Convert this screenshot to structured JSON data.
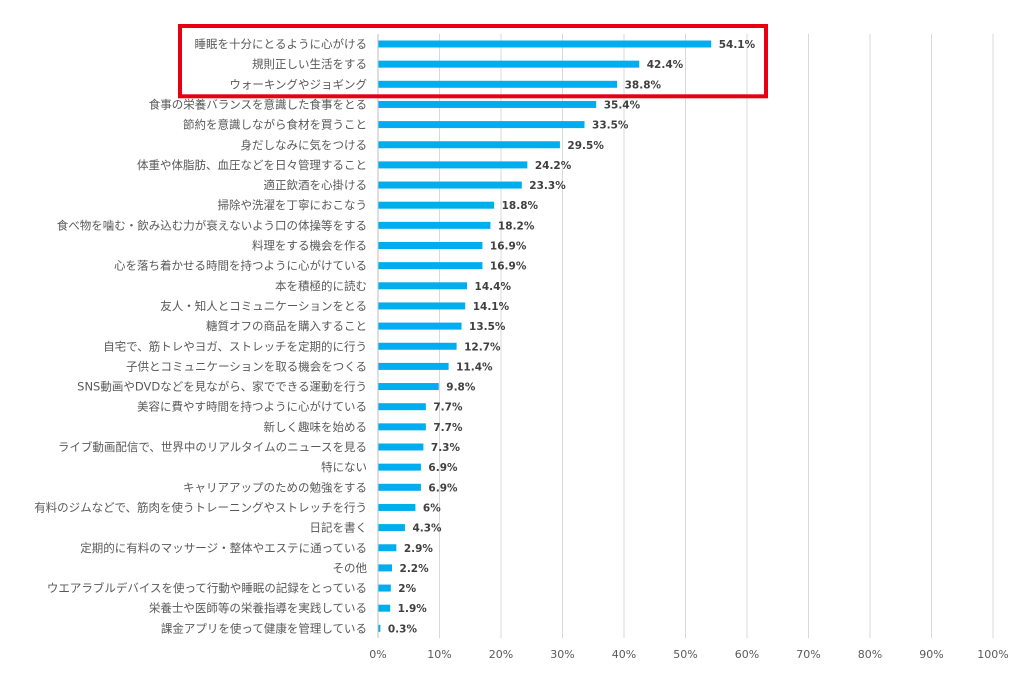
{
  "chart_data": {
    "type": "bar",
    "orientation": "horizontal",
    "title": "",
    "xlabel": "",
    "ylabel": "",
    "xlim": [
      0,
      100
    ],
    "x_ticks": [
      "0%",
      "10%",
      "20%",
      "30%",
      "40%",
      "50%",
      "60%",
      "70%",
      "80%",
      "90%",
      "100%"
    ],
    "grid": true,
    "bar_color": "#00aeef",
    "highlight_color": "#e60012",
    "highlight_categories": [
      "睡眠を十分にとるように心がける",
      "規則正しい生活をする",
      "ウォーキングやジョギング"
    ],
    "categories": [
      "睡眠を十分にとるように心がける",
      "規則正しい生活をする",
      "ウォーキングやジョギング",
      "食事の栄養バランスを意識した食事をとる",
      "節約を意識しながら食材を買うこと",
      "身だしなみに気をつける",
      "体重や体脂肪、血圧などを日々管理すること",
      "適正飲酒を心掛ける",
      "掃除や洗濯を丁寧におこなう",
      "食べ物を噛む・飲み込む力が衰えないよう口の体操等をする",
      "料理をする機会を作る",
      "心を落ち着かせる時間を持つように心がけている",
      "本を積極的に読む",
      "友人・知人とコミュニケーションをとる",
      "糖質オフの商品を購入すること",
      "自宅で、筋トレやヨガ、ストレッチを定期的に行う",
      "子供とコミュニケーションを取る機会をつくる",
      "SNS動画やDVDなどを見ながら、家でできる運動を行う",
      "美容に費やす時間を持つように心がけている",
      "新しく趣味を始める",
      "ライブ動画配信で、世界中のリアルタイムのニュースを見る",
      "特にない",
      "キャリアアップのための勉強をする",
      "有料のジムなどで、筋肉を使うトレーニングやストレッチを行う",
      "日記を書く",
      "定期的に有料のマッサージ・整体やエステに通っている",
      "その他",
      "ウエアラブルデバイスを使って行動や睡眠の記録をとっている",
      "栄養士や医師等の栄養指導を実践している",
      "課金アプリを使って健康を管理している"
    ],
    "values": [
      54.1,
      42.4,
      38.8,
      35.4,
      33.5,
      29.5,
      24.2,
      23.3,
      18.8,
      18.2,
      16.9,
      16.9,
      14.4,
      14.1,
      13.5,
      12.7,
      11.4,
      9.8,
      7.7,
      7.7,
      7.3,
      6.9,
      6.9,
      6,
      4.3,
      2.9,
      2.2,
      2,
      1.9,
      0.3
    ],
    "value_labels": [
      "54.1%",
      "42.4%",
      "38.8%",
      "35.4%",
      "33.5%",
      "29.5%",
      "24.2%",
      "23.3%",
      "18.8%",
      "18.2%",
      "16.9%",
      "16.9%",
      "14.4%",
      "14.1%",
      "13.5%",
      "12.7%",
      "11.4%",
      "9.8%",
      "7.7%",
      "7.7%",
      "7.3%",
      "6.9%",
      "6.9%",
      "6%",
      "4.3%",
      "2.9%",
      "2.2%",
      "2%",
      "1.9%",
      "0.3%"
    ]
  }
}
